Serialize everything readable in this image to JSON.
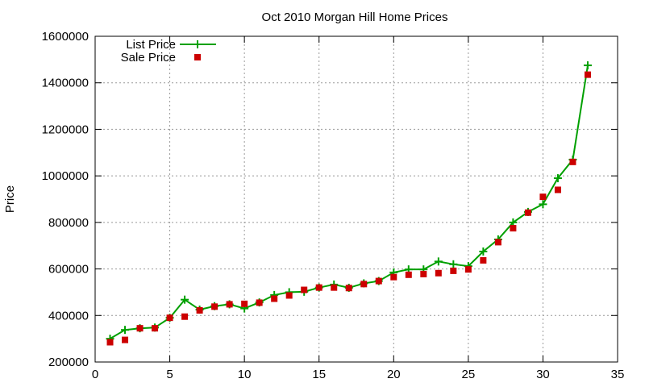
{
  "chart_data": {
    "type": "line",
    "title": "Oct 2010 Morgan Hill Home Prices",
    "xlabel": "",
    "ylabel": "Price",
    "xlim": [
      0,
      35
    ],
    "ylim": [
      200000,
      1600000
    ],
    "x_ticks": [
      "0",
      "5",
      "10",
      "15",
      "20",
      "25",
      "30",
      "35"
    ],
    "y_ticks": [
      "200000",
      "400000",
      "600000",
      "800000",
      "1000000",
      "1200000",
      "1400000",
      "1600000"
    ],
    "grid": true,
    "legend_position": "top-left",
    "x": [
      1,
      2,
      3,
      4,
      5,
      6,
      7,
      8,
      9,
      10,
      11,
      12,
      13,
      14,
      15,
      16,
      17,
      18,
      19,
      20,
      21,
      22,
      23,
      24,
      25,
      26,
      27,
      28,
      29,
      30,
      31,
      32,
      33
    ],
    "series": [
      {
        "name": "List Price",
        "style": "line-with-plus-markers",
        "color": "#00a000",
        "values": [
          300000,
          338000,
          345000,
          348000,
          390000,
          468000,
          425000,
          440000,
          448000,
          430000,
          456000,
          488000,
          500000,
          502000,
          520000,
          533000,
          519000,
          538000,
          548000,
          585000,
          598000,
          598000,
          632000,
          620000,
          612000,
          675000,
          727000,
          800000,
          845000,
          878000,
          990000,
          1070000,
          1475000
        ]
      },
      {
        "name": "Sale Price",
        "style": "square-markers",
        "color": "#cc0000",
        "values": [
          285000,
          295000,
          345000,
          345000,
          390000,
          395000,
          422000,
          438000,
          448000,
          450000,
          455000,
          472000,
          486000,
          510000,
          520000,
          520000,
          518000,
          535000,
          548000,
          565000,
          575000,
          578000,
          582000,
          592000,
          598000,
          637000,
          715000,
          775000,
          842000,
          910000,
          940000,
          1060000,
          1435000
        ]
      }
    ]
  }
}
